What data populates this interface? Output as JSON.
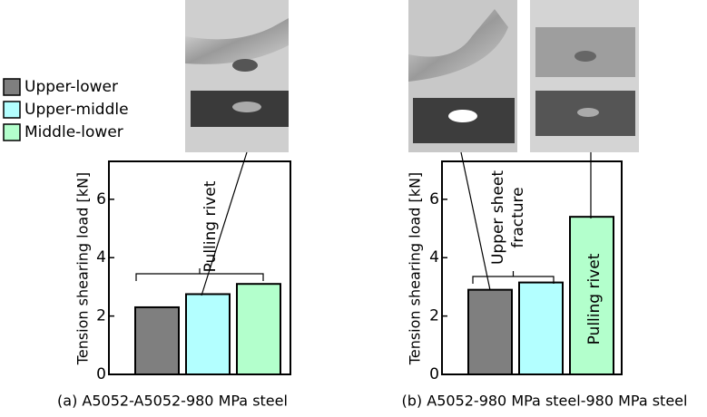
{
  "legend": {
    "entries": [
      {
        "name": "Upper-lower",
        "color": "#7f7f7f",
        "text_color": "#000000"
      },
      {
        "name": "Upper-middle",
        "color": "#b3ffff",
        "text_color": "#2b2bd0"
      },
      {
        "name": "Middle-lower",
        "color": "#b3ffcc",
        "text_color": "#1f5f1f"
      }
    ]
  },
  "chart_data": [
    {
      "type": "bar",
      "caption": "(a) A5052-A5052-980 MPa steel",
      "y_label": "Tension shearing load [kN]",
      "values": [
        2.3,
        2.75,
        3.1
      ],
      "ylim": [
        0,
        7.3
      ],
      "yticks": [
        0,
        2,
        4,
        6
      ],
      "annotations": [
        {
          "lines": [
            "Pulling rivet"
          ]
        }
      ]
    },
    {
      "type": "bar",
      "caption": "(b) A5052-980 MPa steel-980 MPa steel",
      "y_label": "Tension shearing load [kN]",
      "values": [
        2.9,
        3.15,
        5.4
      ],
      "ylim": [
        0,
        7.3
      ],
      "yticks": [
        0,
        2,
        4,
        6
      ],
      "annotations": [
        {
          "lines": [
            "Upper sheet",
            "fracture"
          ]
        },
        {
          "lines": [
            "Pulling rivet"
          ]
        }
      ]
    }
  ]
}
